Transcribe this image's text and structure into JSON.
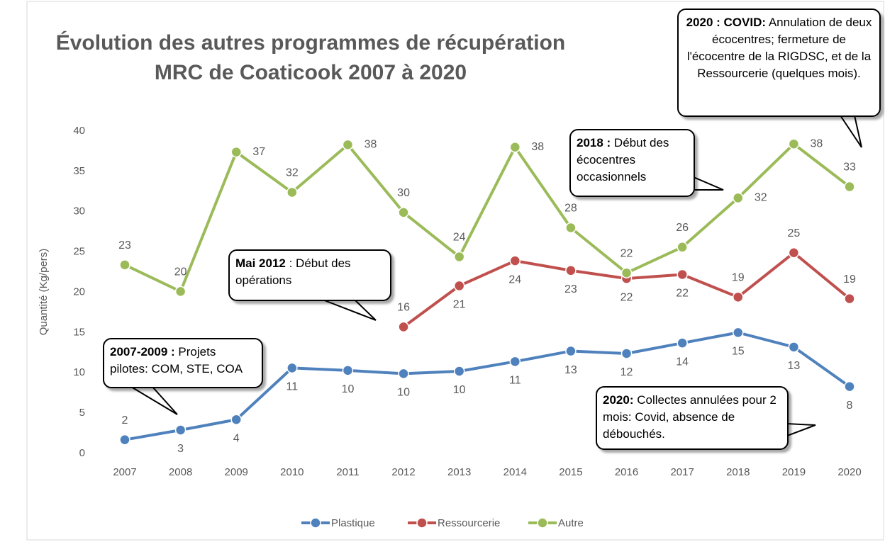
{
  "chart_data": {
    "type": "line",
    "title": [
      "Évolution des autres programmes de récupération",
      "MRC de Coaticook 2007 à 2020"
    ],
    "y_label": "Quantité (Kg/pers)",
    "categories": [
      "2007",
      "2008",
      "2009",
      "2010",
      "2011",
      "2012",
      "2013",
      "2014",
      "2015",
      "2016",
      "2017",
      "2018",
      "2019",
      "2020"
    ],
    "series": [
      {
        "name": "Plastique",
        "color": "#4f81bd",
        "values": [
          1.7,
          2.9,
          4.2,
          10.6,
          10.3,
          9.9,
          10.2,
          11.4,
          12.7,
          12.4,
          13.7,
          15.0,
          13.2,
          8.3
        ],
        "value_labels": [
          "2",
          "3",
          "4",
          "11",
          "10",
          "10",
          "10",
          "11",
          "13",
          "12",
          "14",
          "15",
          "13",
          "8"
        ]
      },
      {
        "name": "Ressourcerie",
        "color": "#c0504d",
        "values": [
          null,
          null,
          null,
          null,
          null,
          15.7,
          20.8,
          23.9,
          22.7,
          21.7,
          22.2,
          19.4,
          24.9,
          19.2
        ],
        "value_labels": [
          null,
          null,
          null,
          null,
          null,
          "16",
          "21",
          "24",
          "23",
          "22",
          "22",
          "19",
          "25",
          "19"
        ]
      },
      {
        "name": "Autre",
        "color": "#9bbb59",
        "values": [
          23.4,
          20.1,
          37.4,
          32.4,
          38.3,
          29.9,
          24.4,
          38.0,
          28.0,
          22.4,
          25.6,
          31.7,
          38.4,
          33.1
        ],
        "value_labels": [
          "23",
          "20",
          "37",
          "32",
          "38",
          "30",
          "24",
          "38",
          "28",
          "22",
          "26",
          "32",
          "38",
          "33"
        ]
      }
    ],
    "ylim": [
      0,
      40
    ],
    "yticks": [
      0,
      5,
      10,
      15,
      20,
      25,
      30,
      35,
      40
    ],
    "grid": false,
    "legend": "bottom",
    "annotations": [
      {
        "bold": "2007-2009 :",
        "text": " Projets pilotes: COM, STE, COA"
      },
      {
        "bold": "Mai 2012",
        "text": " : Début des opérations"
      },
      {
        "bold": "2018 :",
        "text": " Début des écocentres occasionnels"
      },
      {
        "bold": "2020 : COVID:",
        "text": " Annulation de deux écocentres; fermeture de l'écocentre de la RIGDSC, et de la Ressourcerie (quelques mois)."
      },
      {
        "bold": "2020:",
        "text": " Collectes annulées pour 2 mois: Covid, absence de débouchés."
      }
    ]
  }
}
